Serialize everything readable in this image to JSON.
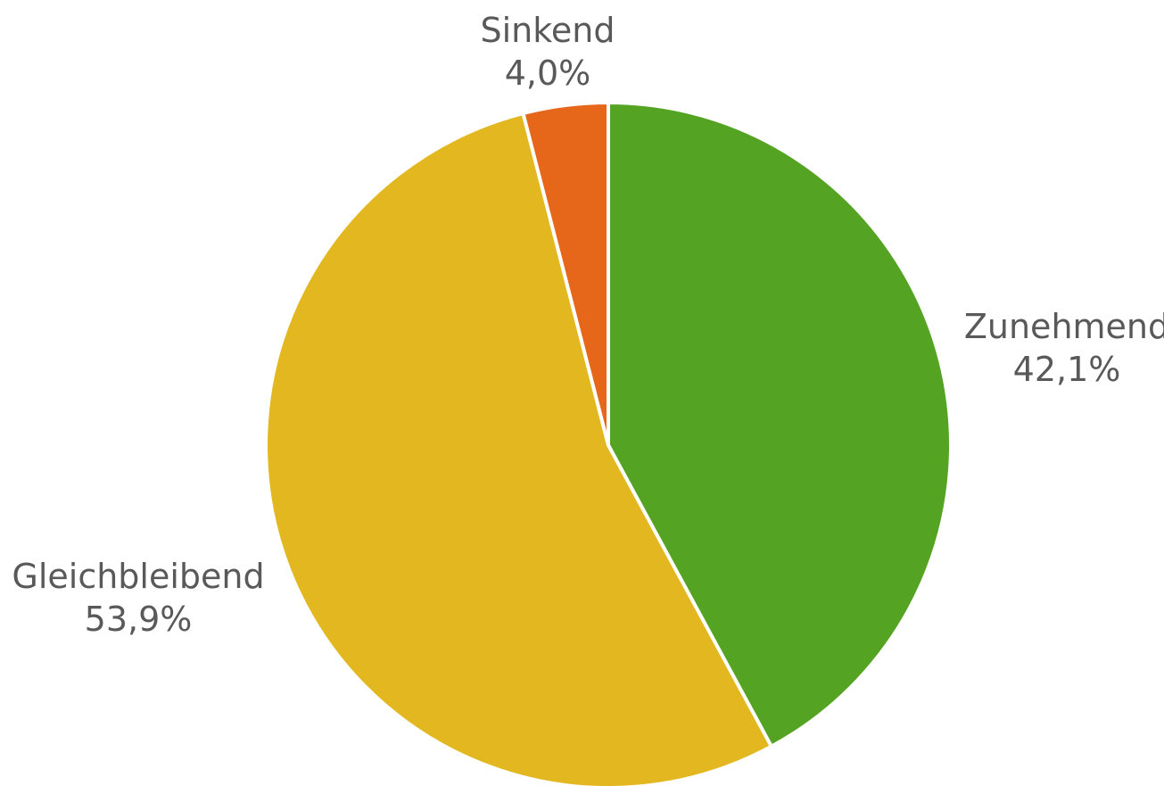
{
  "chart_data": {
    "type": "pie",
    "title": "",
    "start_angle_deg": 0,
    "direction": "clockwise",
    "slices": [
      {
        "label": "Zunehmend",
        "value": 42.1,
        "value_label": "42,1%",
        "color": "#55A323"
      },
      {
        "label": "Gleichbleibend",
        "value": 53.9,
        "value_label": "53,9%",
        "color": "#E3B71F"
      },
      {
        "label": "Sinkend",
        "value": 4.0,
        "value_label": "4,0%",
        "color": "#E6661A"
      }
    ]
  }
}
